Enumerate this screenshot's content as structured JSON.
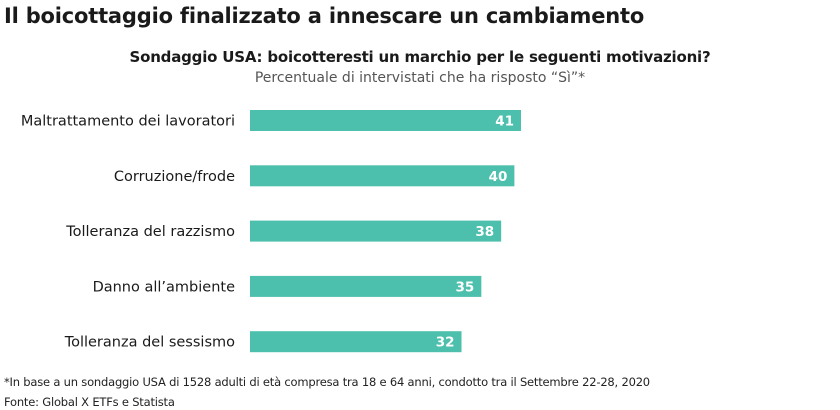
{
  "headline": "Il boicottaggio finalizzato a innescare un cambiamento",
  "footnote": "*In base a un sondaggio USA di 1528 adulti di età compresa tra 18 e 64 anni, condotto tra il Settembre 22-28, 2020",
  "source": "Fonte: Global X ETFs e Statista",
  "chart_data": {
    "type": "bar",
    "orientation": "horizontal",
    "title": "Sondaggio USA: boicotteresti un marchio per le seguenti motivazioni?",
    "subtitle": "Percentuale di intervistati che ha risposto “Sì”*",
    "categories": [
      "Maltrattamento dei lavoratori",
      "Corruzione/frode",
      "Tolleranza del razzismo",
      "Danno all’ambiente",
      "Tolleranza del sessismo"
    ],
    "values": [
      41,
      40,
      38,
      35,
      32
    ],
    "value_labels": [
      "41",
      "40",
      "38",
      "35",
      "32"
    ],
    "xlim": [
      0,
      41
    ],
    "bar_color": "#4dbfad",
    "label_color": "#ffffff",
    "grid": false,
    "legend": "none"
  }
}
